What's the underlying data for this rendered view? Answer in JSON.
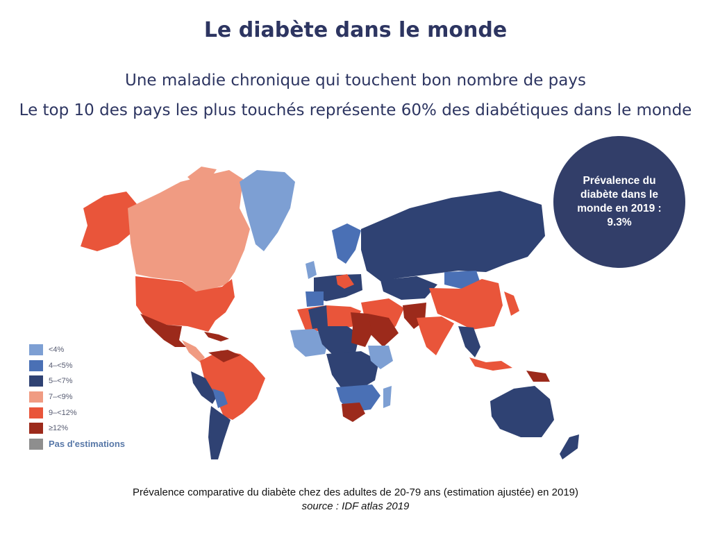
{
  "title": "Le diabète dans le monde",
  "subtitle1": "Une maladie chronique qui touchent bon nombre de pays",
  "subtitle2": "Le top 10 des pays les plus touchés représente 60% des diabétiques dans le monde",
  "bubble": "Prévalence du diabète dans le monde en 2019 : 9.3%",
  "legend": [
    {
      "label": "<4%",
      "color": "#7d9fd3"
    },
    {
      "label": "4–<5%",
      "color": "#4a70b5"
    },
    {
      "label": "5–<7%",
      "color": "#2f4273"
    },
    {
      "label": "7–<9%",
      "color": "#f09b82"
    },
    {
      "label": "9–<12%",
      "color": "#e9553a"
    },
    {
      "label": "≥12%",
      "color": "#9c2a1b"
    },
    {
      "label": "Pas d'estimations",
      "color": "#8e8e8e"
    }
  ],
  "caption": "Prévalence comparative du diabète chez des adultes de 20-79 ans (estimation ajustée) en 2019)",
  "source": "source : IDF atlas 2019"
}
